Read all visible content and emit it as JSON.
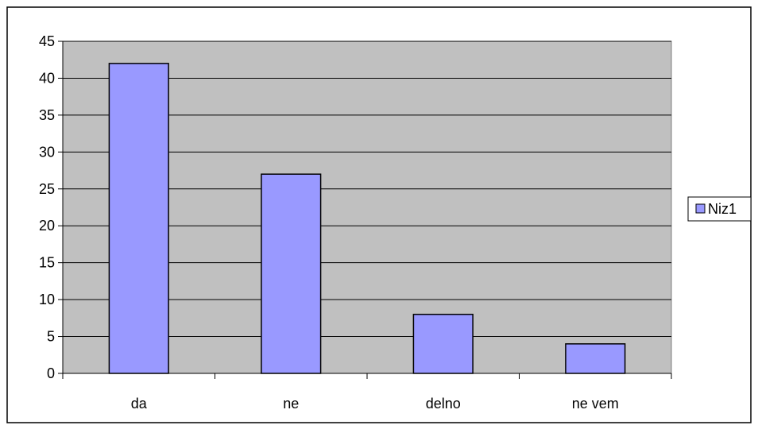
{
  "chart_data": {
    "type": "bar",
    "categories": [
      "da",
      "ne",
      "delno",
      "ne vem"
    ],
    "series": [
      {
        "name": "Niz1",
        "values": [
          42,
          27,
          8,
          4
        ]
      }
    ],
    "ylim": [
      0,
      45
    ],
    "yticks": [
      0,
      5,
      10,
      15,
      20,
      25,
      30,
      35,
      40,
      45
    ],
    "grid": true,
    "legend_position": "right",
    "colors": {
      "bar_fill": "#9999ff",
      "plot_background": "#c0c0c0",
      "gridline": "#000000"
    }
  }
}
